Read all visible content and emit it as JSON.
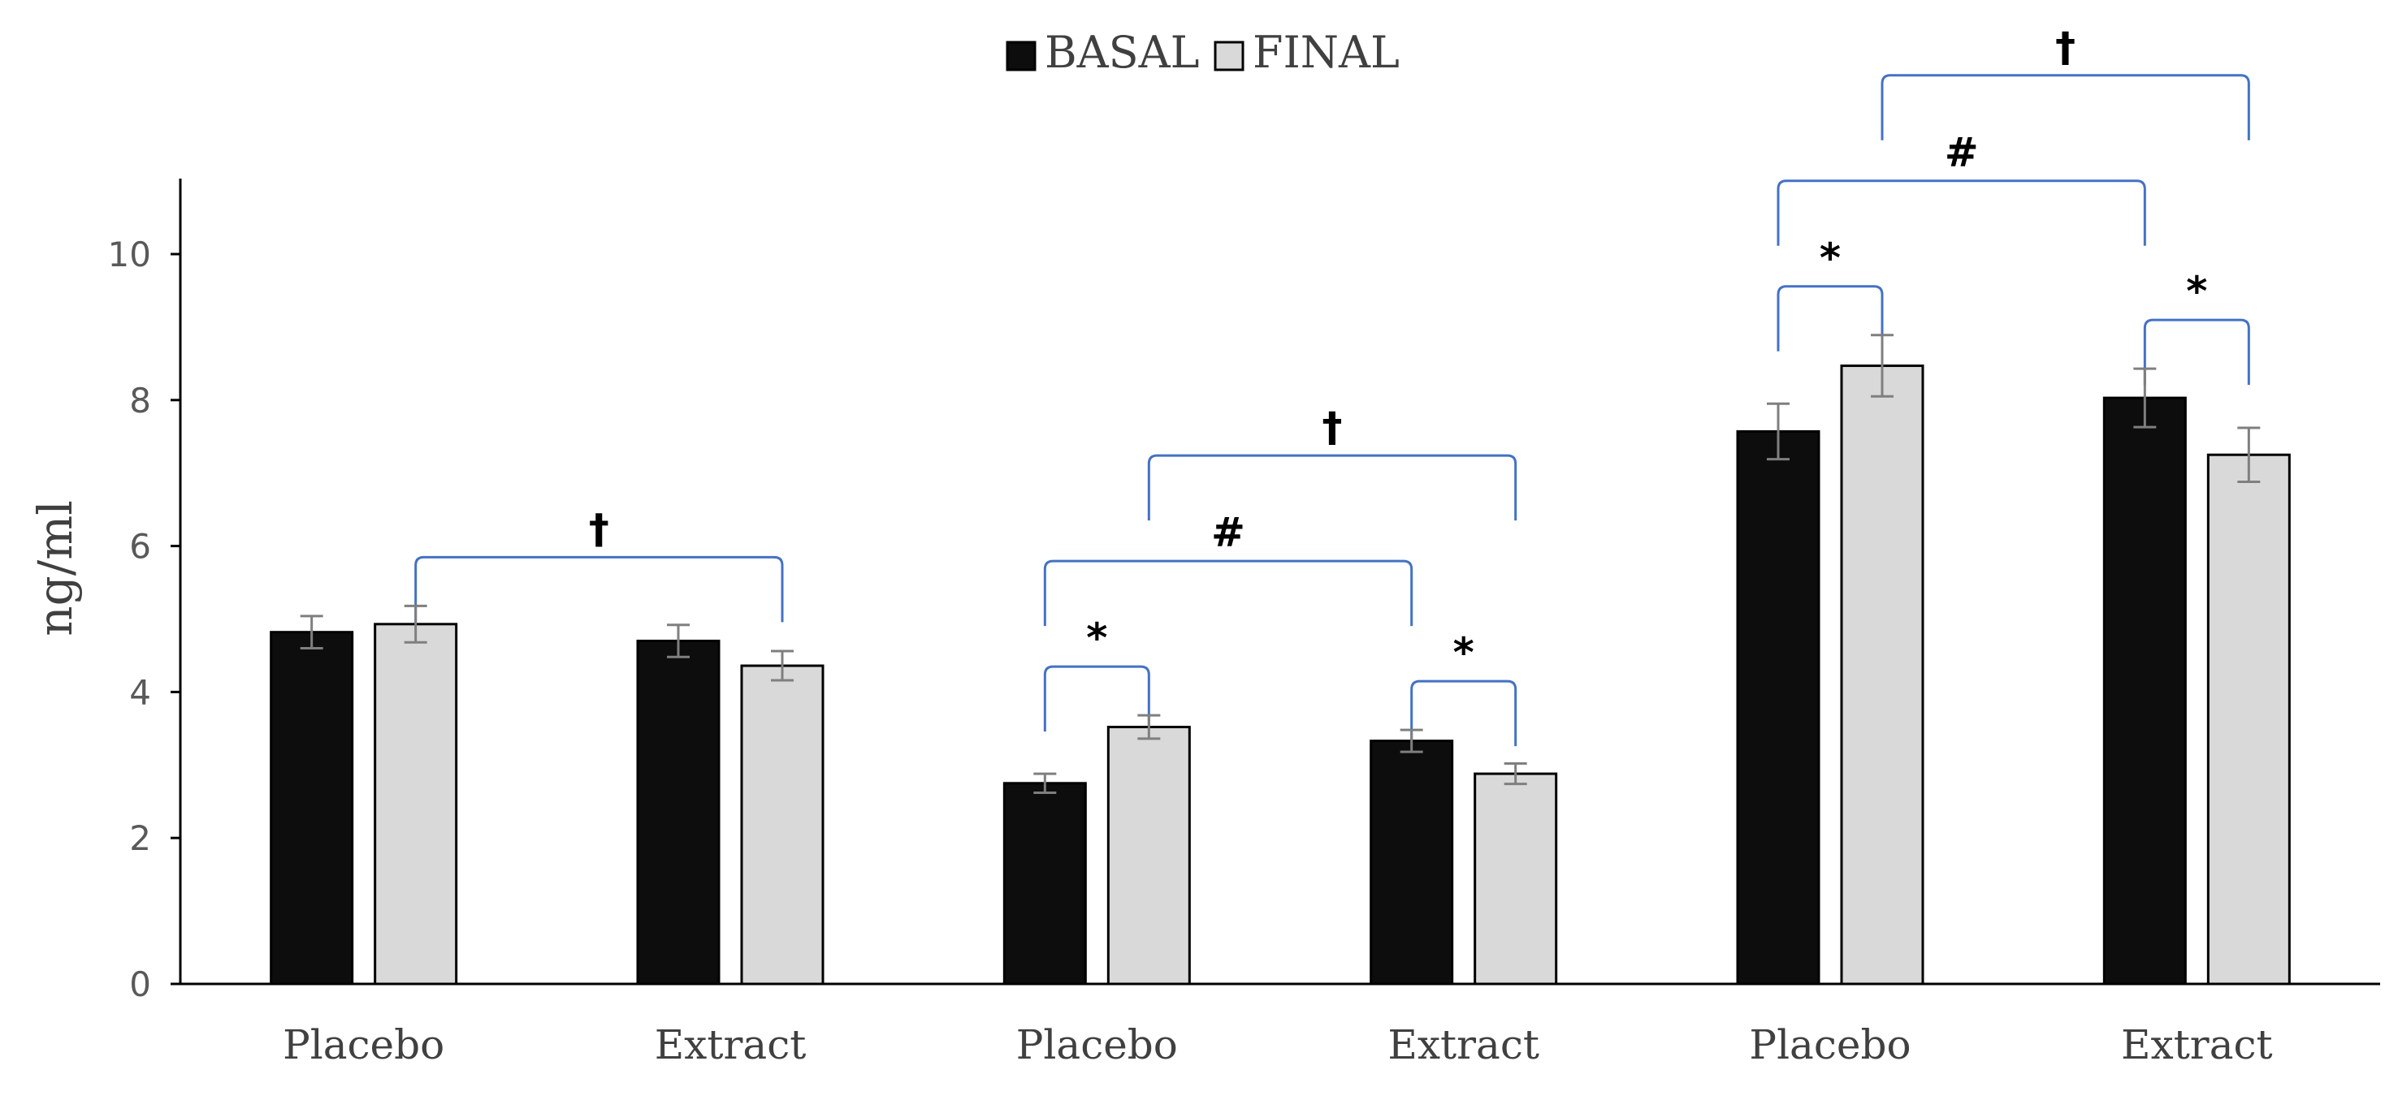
{
  "chart_data": {
    "type": "bar",
    "title": "",
    "xlabel": "",
    "ylabel": "ng/ml",
    "ylim": [
      0,
      11
    ],
    "yticks": [
      0,
      2,
      4,
      6,
      8,
      10
    ],
    "grid": false,
    "legend_position": "top-center",
    "categories": [
      "Placebo",
      "Extract",
      "Placebo",
      "Extract",
      "Placebo",
      "Extract"
    ],
    "series": [
      {
        "name": "BASAL",
        "color": "#0d0d0d",
        "values": [
          4.82,
          4.7,
          2.75,
          3.33,
          7.57,
          8.03
        ],
        "errors": [
          0.22,
          0.22,
          0.13,
          0.15,
          0.38,
          0.4
        ]
      },
      {
        "name": "FINAL",
        "color": "#d9d9d9",
        "values": [
          4.93,
          4.36,
          3.52,
          2.88,
          8.47,
          7.25
        ],
        "errors": [
          0.25,
          0.2,
          0.16,
          0.14,
          0.42,
          0.37
        ]
      }
    ],
    "annotations": [
      {
        "symbol": "†",
        "from": {
          "category": 0,
          "series": 1
        },
        "to": {
          "category": 1,
          "series": 1
        }
      },
      {
        "symbol": "#",
        "from": {
          "category": 2,
          "series": 0
        },
        "to": {
          "category": 3,
          "series": 0
        }
      },
      {
        "symbol": "†",
        "from": {
          "category": 2,
          "series": 1
        },
        "to": {
          "category": 3,
          "series": 1
        }
      },
      {
        "symbol": "*",
        "from": {
          "category": 2,
          "series": 0
        },
        "to": {
          "category": 2,
          "series": 1
        }
      },
      {
        "symbol": "*",
        "from": {
          "category": 3,
          "series": 0
        },
        "to": {
          "category": 3,
          "series": 1
        }
      },
      {
        "symbol": "#",
        "from": {
          "category": 4,
          "series": 0
        },
        "to": {
          "category": 5,
          "series": 0
        }
      },
      {
        "symbol": "†",
        "from": {
          "category": 4,
          "series": 1
        },
        "to": {
          "category": 5,
          "series": 1
        }
      },
      {
        "symbol": "*",
        "from": {
          "category": 4,
          "series": 0
        },
        "to": {
          "category": 4,
          "series": 1
        }
      },
      {
        "symbol": "*",
        "from": {
          "category": 5,
          "series": 0
        },
        "to": {
          "category": 5,
          "series": 1
        }
      }
    ],
    "bracket_color": "#4472c4",
    "axis_color": "#000000",
    "errorbar_color": "#7f7f7f"
  }
}
